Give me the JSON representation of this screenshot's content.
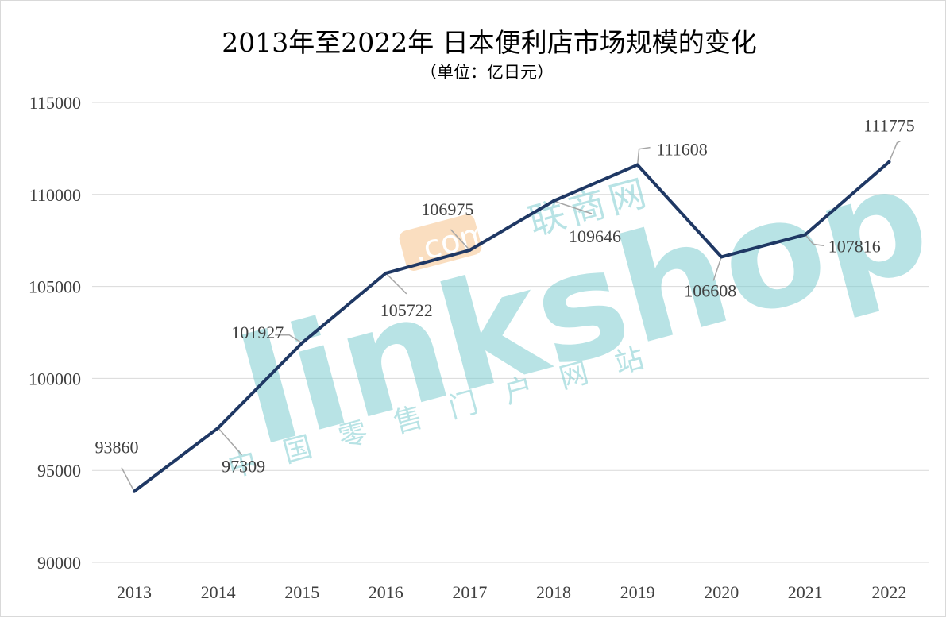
{
  "chart_data": {
    "type": "line",
    "title": "2013年至2022年 日本便利店市场规模的变化",
    "subtitle": "（单位：亿日元）",
    "categories": [
      "2013",
      "2014",
      "2015",
      "2016",
      "2017",
      "2018",
      "2019",
      "2020",
      "2021",
      "2022"
    ],
    "series": [
      {
        "values": [
          93860,
          97309,
          101927,
          105722,
          106975,
          109646,
          111608,
          106608,
          107816,
          111775
        ],
        "color": "#1f3864"
      }
    ],
    "y_ticks": [
      "90000",
      "95000",
      "100000",
      "105000",
      "110000",
      "115000"
    ],
    "ylim": [
      90000,
      115000
    ],
    "grid": "horizontal",
    "legend": "none",
    "data_labels": [
      "93860",
      "97309",
      "101927",
      "105722",
      "106975",
      "109646",
      "111608",
      "106608",
      "107816",
      "111775"
    ]
  },
  "watermark": {
    "brand": "linkshop",
    "com": ".com",
    "cn_name": "联商网",
    "tagline": "中国零售门户网站",
    "colors": {
      "teal": "#7fcdd0",
      "orange": "#f6c48d"
    }
  }
}
